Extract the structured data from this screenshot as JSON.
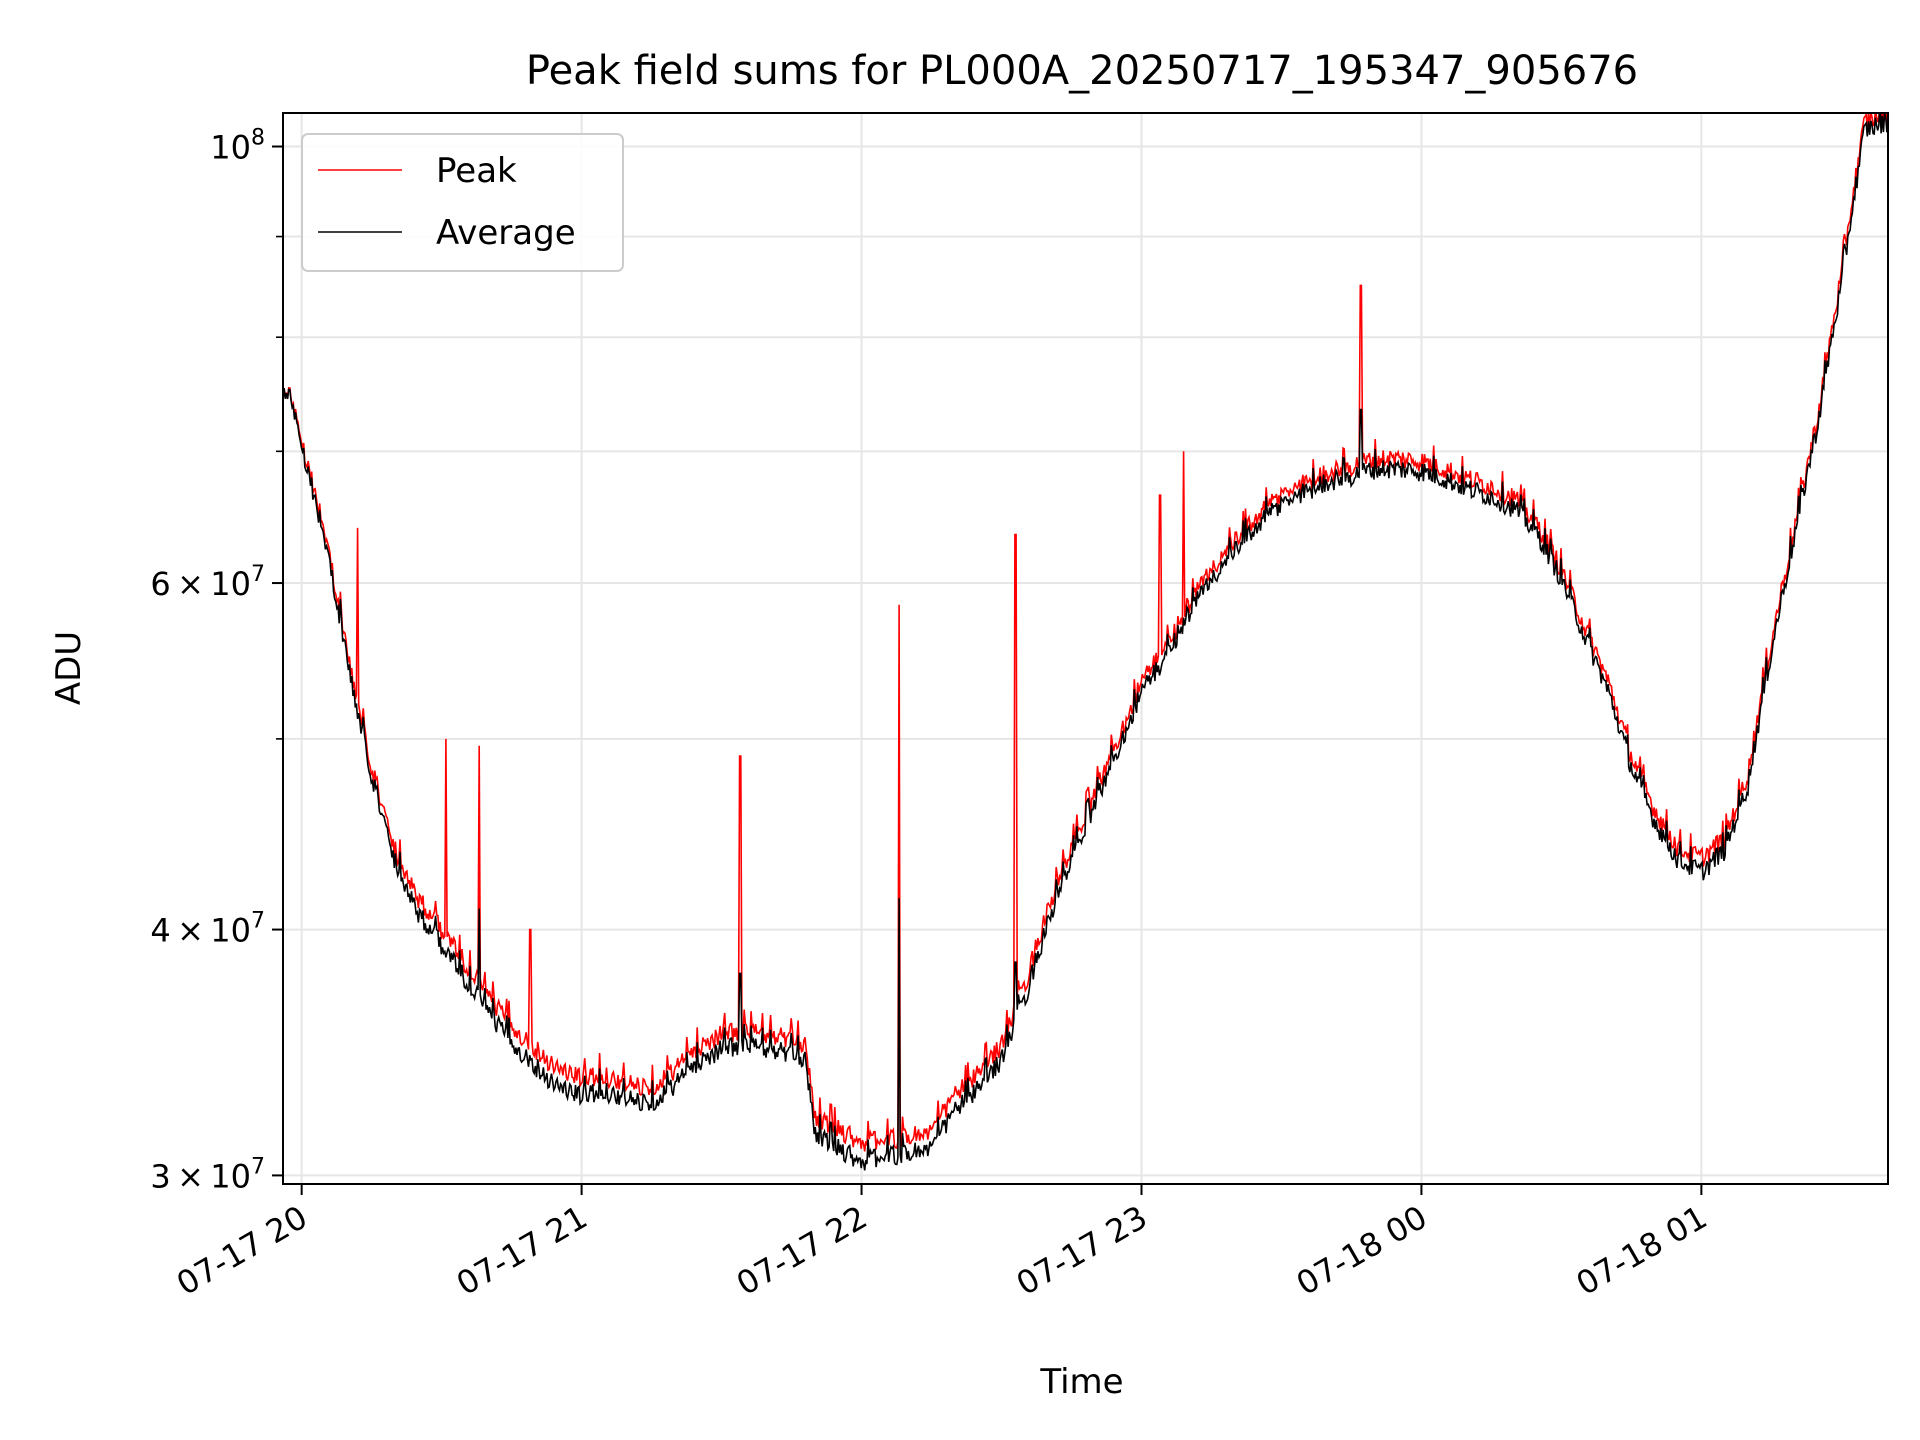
{
  "chart_data": {
    "type": "line",
    "title": "Peak field sums for PL000A_20250717_195347_905676",
    "xlabel": "Time",
    "ylabel": "ADU",
    "y_scale": "log",
    "ylim": [
      29700000,
      104000000
    ],
    "xlim": [
      "2025-07-17 19:56",
      "2025-07-18 01:40"
    ],
    "grid": true,
    "legend_position": "upper left",
    "x_ticks": [
      {
        "t": "2025-07-17 20:00",
        "label": "07-17 20"
      },
      {
        "t": "2025-07-17 21:00",
        "label": "07-17 21"
      },
      {
        "t": "2025-07-17 22:00",
        "label": "07-17 22"
      },
      {
        "t": "2025-07-17 23:00",
        "label": "07-17 23"
      },
      {
        "t": "2025-07-18 00:00",
        "label": "07-18 00"
      },
      {
        "t": "2025-07-18 01:00",
        "label": "07-18 01"
      }
    ],
    "y_major_ticks": [
      {
        "value": 30000000,
        "mantissa": "3",
        "exp": "7"
      },
      {
        "value": 40000000,
        "mantissa": "4",
        "exp": "7"
      },
      {
        "value": 60000000,
        "mantissa": "6",
        "exp": "7"
      },
      {
        "value": 100000000,
        "mantissa": "",
        "exp": "8"
      }
    ],
    "y_minor_gridlines": [
      50000000,
      70000000,
      80000000,
      90000000
    ],
    "series": [
      {
        "name": "Peak",
        "color": "#ff0000",
        "points": [
          [
            "2025-07-17 19:56",
            75.0
          ],
          [
            "2025-07-17 19:58",
            74.5
          ],
          [
            "2025-07-17 20:00",
            71.0
          ],
          [
            "2025-07-17 20:03",
            66.5
          ],
          [
            "2025-07-17 20:05",
            63.5
          ],
          [
            "2025-07-17 20:08",
            58.5
          ],
          [
            "2025-07-17 20:10",
            55.0
          ],
          [
            "2025-07-17 20:12",
            52.0
          ],
          [
            "2025-07-17 20:15",
            48.5
          ],
          [
            "2025-07-17 20:18",
            45.5
          ],
          [
            "2025-07-17 20:20",
            44.0
          ],
          [
            "2025-07-17 20:25",
            41.5
          ],
          [
            "2025-07-17 20:30",
            40.0
          ],
          [
            "2025-07-17 20:35",
            38.5
          ],
          [
            "2025-07-17 20:40",
            37.0
          ],
          [
            "2025-07-17 20:45",
            35.8
          ],
          [
            "2025-07-17 20:50",
            34.8
          ],
          [
            "2025-07-17 20:55",
            34.0
          ],
          [
            "2025-07-17 21:00",
            33.6
          ],
          [
            "2025-07-17 21:04",
            33.8
          ],
          [
            "2025-07-17 21:08",
            33.5
          ],
          [
            "2025-07-17 21:12",
            33.3
          ],
          [
            "2025-07-17 21:16",
            33.4
          ],
          [
            "2025-07-17 21:20",
            34.0
          ],
          [
            "2025-07-17 21:25",
            34.9
          ],
          [
            "2025-07-17 21:30",
            35.4
          ],
          [
            "2025-07-17 21:35",
            35.6
          ],
          [
            "2025-07-17 21:40",
            35.4
          ],
          [
            "2025-07-17 21:45",
            35.2
          ],
          [
            "2025-07-17 21:48",
            35.0
          ],
          [
            "2025-07-17 21:50",
            32.2
          ],
          [
            "2025-07-17 21:55",
            31.7
          ],
          [
            "2025-07-17 22:00",
            31.2
          ],
          [
            "2025-07-17 22:05",
            31.3
          ],
          [
            "2025-07-17 22:10",
            31.4
          ],
          [
            "2025-07-17 22:15",
            31.6
          ],
          [
            "2025-07-17 22:20",
            33.0
          ],
          [
            "2025-07-17 22:25",
            33.8
          ],
          [
            "2025-07-17 22:30",
            35.0
          ],
          [
            "2025-07-17 22:35",
            37.5
          ],
          [
            "2025-07-17 22:40",
            41.0
          ],
          [
            "2025-07-17 22:45",
            44.0
          ],
          [
            "2025-07-17 22:50",
            47.0
          ],
          [
            "2025-07-17 22:55",
            50.0
          ],
          [
            "2025-07-17 23:00",
            53.5
          ],
          [
            "2025-07-17 23:05",
            55.5
          ],
          [
            "2025-07-17 23:10",
            58.5
          ],
          [
            "2025-07-17 23:15",
            61.0
          ],
          [
            "2025-07-17 23:20",
            63.0
          ],
          [
            "2025-07-17 23:25",
            65.0
          ],
          [
            "2025-07-17 23:30",
            66.5
          ],
          [
            "2025-07-17 23:35",
            67.5
          ],
          [
            "2025-07-17 23:40",
            68.3
          ],
          [
            "2025-07-17 23:45",
            68.8
          ],
          [
            "2025-07-17 23:50",
            69.4
          ],
          [
            "2025-07-17 23:55",
            69.4
          ],
          [
            "2025-07-18 00:00",
            69.2
          ],
          [
            "2025-07-18 00:05",
            68.6
          ],
          [
            "2025-07-18 00:10",
            67.8
          ],
          [
            "2025-07-18 00:15",
            67.2
          ],
          [
            "2025-07-18 00:20",
            66.3
          ],
          [
            "2025-07-18 00:25",
            64.2
          ],
          [
            "2025-07-18 00:30",
            61.0
          ],
          [
            "2025-07-18 00:35",
            57.0
          ],
          [
            "2025-07-18 00:40",
            53.5
          ],
          [
            "2025-07-18 00:45",
            49.0
          ],
          [
            "2025-07-18 00:50",
            46.0
          ],
          [
            "2025-07-18 00:55",
            44.0
          ],
          [
            "2025-07-18 01:00",
            43.5
          ],
          [
            "2025-07-18 01:05",
            44.5
          ],
          [
            "2025-07-18 01:10",
            48.0
          ],
          [
            "2025-07-18 01:15",
            56.0
          ],
          [
            "2025-07-18 01:20",
            64.0
          ],
          [
            "2025-07-18 01:25",
            73.0
          ],
          [
            "2025-07-18 01:30",
            86.0
          ],
          [
            "2025-07-18 01:35",
            103.0
          ],
          [
            "2025-07-18 01:40",
            104.0
          ]
        ],
        "spikes": [
          [
            "2025-07-17 20:12",
            64.0
          ],
          [
            "2025-07-17 20:31",
            50.0
          ],
          [
            "2025-07-17 20:38",
            49.6
          ],
          [
            "2025-07-17 20:49",
            40.0
          ],
          [
            "2025-07-17 21:34",
            49.0
          ],
          [
            "2025-07-17 22:08",
            58.5
          ],
          [
            "2025-07-17 22:33",
            63.5
          ],
          [
            "2025-07-17 23:04",
            66.5
          ],
          [
            "2025-07-17 23:09",
            70.0
          ],
          [
            "2025-07-17 23:47",
            85.0
          ]
        ]
      },
      {
        "name": "Average",
        "color": "#000000",
        "points": [
          [
            "2025-07-17 19:56",
            75.0
          ],
          [
            "2025-07-17 19:58",
            74.3
          ],
          [
            "2025-07-17 20:00",
            70.6
          ],
          [
            "2025-07-17 20:03",
            66.0
          ],
          [
            "2025-07-17 20:05",
            63.0
          ],
          [
            "2025-07-17 20:08",
            58.0
          ],
          [
            "2025-07-17 20:10",
            54.5
          ],
          [
            "2025-07-17 20:12",
            51.5
          ],
          [
            "2025-07-17 20:15",
            48.0
          ],
          [
            "2025-07-17 20:18",
            45.0
          ],
          [
            "2025-07-17 20:20",
            43.4
          ],
          [
            "2025-07-17 20:25",
            40.8
          ],
          [
            "2025-07-17 20:30",
            39.3
          ],
          [
            "2025-07-17 20:35",
            37.8
          ],
          [
            "2025-07-17 20:40",
            36.3
          ],
          [
            "2025-07-17 20:45",
            35.1
          ],
          [
            "2025-07-17 20:50",
            34.1
          ],
          [
            "2025-07-17 20:55",
            33.3
          ],
          [
            "2025-07-17 21:00",
            32.9
          ],
          [
            "2025-07-17 21:04",
            33.2
          ],
          [
            "2025-07-17 21:08",
            32.9
          ],
          [
            "2025-07-17 21:12",
            32.7
          ],
          [
            "2025-07-17 21:16",
            32.8
          ],
          [
            "2025-07-17 21:20",
            33.4
          ],
          [
            "2025-07-17 21:25",
            34.3
          ],
          [
            "2025-07-17 21:30",
            34.8
          ],
          [
            "2025-07-17 21:35",
            35.0
          ],
          [
            "2025-07-17 21:40",
            34.8
          ],
          [
            "2025-07-17 21:45",
            34.6
          ],
          [
            "2025-07-17 21:48",
            34.4
          ],
          [
            "2025-07-17 21:50",
            31.6
          ],
          [
            "2025-07-17 21:55",
            31.0
          ],
          [
            "2025-07-17 22:00",
            30.5
          ],
          [
            "2025-07-17 22:05",
            30.7
          ],
          [
            "2025-07-17 22:10",
            30.8
          ],
          [
            "2025-07-17 22:15",
            31.0
          ],
          [
            "2025-07-17 22:20",
            32.4
          ],
          [
            "2025-07-17 22:25",
            33.2
          ],
          [
            "2025-07-17 22:30",
            34.4
          ],
          [
            "2025-07-17 22:35",
            36.9
          ],
          [
            "2025-07-17 22:40",
            40.4
          ],
          [
            "2025-07-17 22:45",
            43.4
          ],
          [
            "2025-07-17 22:50",
            46.4
          ],
          [
            "2025-07-17 22:55",
            49.4
          ],
          [
            "2025-07-17 23:00",
            52.9
          ],
          [
            "2025-07-17 23:05",
            54.9
          ],
          [
            "2025-07-17 23:10",
            57.9
          ],
          [
            "2025-07-17 23:15",
            60.3
          ],
          [
            "2025-07-17 23:20",
            62.3
          ],
          [
            "2025-07-17 23:25",
            64.3
          ],
          [
            "2025-07-17 23:30",
            65.8
          ],
          [
            "2025-07-17 23:35",
            66.8
          ],
          [
            "2025-07-17 23:40",
            67.6
          ],
          [
            "2025-07-17 23:45",
            68.0
          ],
          [
            "2025-07-17 23:50",
            68.6
          ],
          [
            "2025-07-17 23:55",
            68.6
          ],
          [
            "2025-07-18 00:00",
            68.4
          ],
          [
            "2025-07-18 00:05",
            67.8
          ],
          [
            "2025-07-18 00:10",
            67.0
          ],
          [
            "2025-07-18 00:15",
            66.4
          ],
          [
            "2025-07-18 00:20",
            65.5
          ],
          [
            "2025-07-18 00:25",
            63.5
          ],
          [
            "2025-07-18 00:30",
            60.3
          ],
          [
            "2025-07-18 00:35",
            56.4
          ],
          [
            "2025-07-18 00:40",
            52.9
          ],
          [
            "2025-07-18 00:45",
            48.4
          ],
          [
            "2025-07-18 00:50",
            45.4
          ],
          [
            "2025-07-18 00:55",
            43.4
          ],
          [
            "2025-07-18 01:00",
            42.8
          ],
          [
            "2025-07-18 01:05",
            43.9
          ],
          [
            "2025-07-18 01:10",
            47.4
          ],
          [
            "2025-07-18 01:15",
            55.4
          ],
          [
            "2025-07-18 01:20",
            63.4
          ],
          [
            "2025-07-18 01:25",
            72.4
          ],
          [
            "2025-07-18 01:30",
            85.0
          ],
          [
            "2025-07-18 01:35",
            102.0
          ],
          [
            "2025-07-18 01:40",
            103.0
          ]
        ],
        "spikes": [
          [
            "2025-07-17 20:38",
            41.0
          ],
          [
            "2025-07-17 21:34",
            38.0
          ],
          [
            "2025-07-17 22:08",
            41.5
          ],
          [
            "2025-07-17 22:33",
            38.5
          ],
          [
            "2025-07-17 23:47",
            73.5
          ]
        ]
      }
    ],
    "value_unit_scale": 1000000
  }
}
